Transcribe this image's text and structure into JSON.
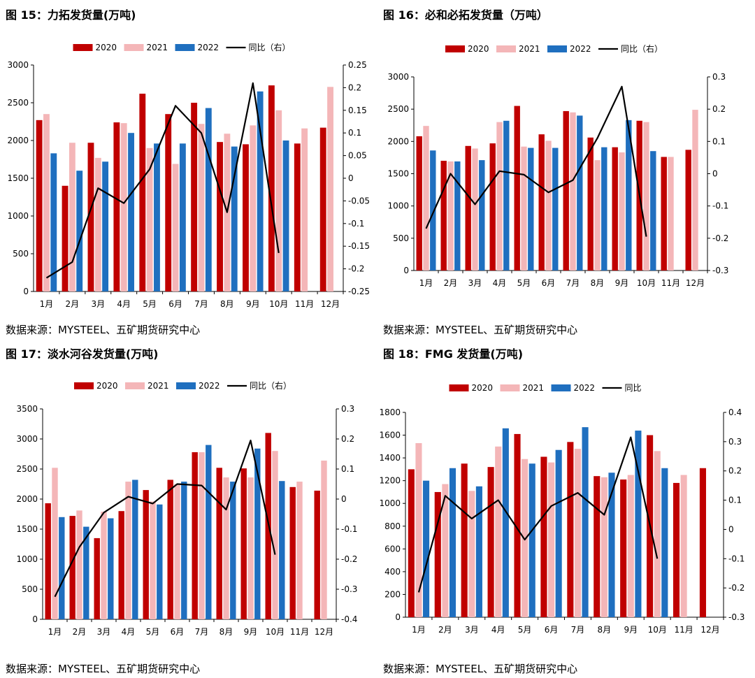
{
  "colors": {
    "c2020": "#c00000",
    "c2021": "#f4b6b8",
    "c2022": "#1f6fbf",
    "line": "#000000"
  },
  "panels": [
    {
      "title": "图 15：力拓发货量(万吨)",
      "source": "数据来源：MYSTEEL、五矿期货研究中心"
    },
    {
      "title": "图 16：必和必拓发货量（万吨）",
      "source": "数据来源：MYSTEEL、五矿期货研究中心"
    },
    {
      "title": "图 17：淡水河谷发货量(万吨)",
      "source": "数据来源：MYSTEEL、五矿期货研究中心"
    },
    {
      "title": "图 18：FMG 发货量(万吨)",
      "source": "数据来源：MYSTEEL、五矿期货研究中心"
    }
  ],
  "chart_data": [
    {
      "type": "bar",
      "title": "图 15：力拓发货量(万吨)",
      "categories": [
        "1月",
        "2月",
        "3月",
        "4月",
        "5月",
        "6月",
        "7月",
        "8月",
        "9月",
        "10月",
        "11月",
        "12月"
      ],
      "series": [
        {
          "name": "2020",
          "values": [
            2270,
            1400,
            1970,
            2240,
            2620,
            2350,
            2500,
            1980,
            1950,
            2730,
            1960,
            2170
          ]
        },
        {
          "name": "2021",
          "values": [
            2350,
            1970,
            1770,
            2230,
            1900,
            1690,
            2220,
            2090,
            2200,
            2400,
            2160,
            2710
          ]
        },
        {
          "name": "2022",
          "values": [
            1830,
            1600,
            1720,
            2100,
            1960,
            1960,
            2430,
            1920,
            2650,
            2000,
            null,
            null
          ]
        }
      ],
      "line": {
        "name": "同比（右）",
        "values": [
          -0.22,
          -0.185,
          -0.022,
          -0.055,
          0.02,
          0.16,
          0.1,
          -0.075,
          0.21,
          -0.165
        ]
      },
      "yleft": {
        "min": 0,
        "max": 3000,
        "ticks": [
          "0",
          "500",
          "1000",
          "1500",
          "2000",
          "2500",
          "3000"
        ]
      },
      "yright": {
        "min": -0.25,
        "max": 0.25,
        "ticks": [
          "-0.25",
          "-0.2",
          "-0.15",
          "-0.1",
          "-0.05",
          "0",
          "0.05",
          "0.1",
          "0.15",
          "0.2",
          "0.25"
        ]
      }
    },
    {
      "type": "bar",
      "title": "图 16：必和必拓发货量（万吨）",
      "categories": [
        "1月",
        "2月",
        "3月",
        "4月",
        "5月",
        "6月",
        "7月",
        "8月",
        "9月",
        "10月",
        "11月",
        "12月"
      ],
      "series": [
        {
          "name": "2020",
          "values": [
            2080,
            1700,
            1930,
            1970,
            2550,
            2110,
            2470,
            2060,
            1910,
            2320,
            1760,
            1870
          ]
        },
        {
          "name": "2021",
          "values": [
            2240,
            1690,
            1890,
            2300,
            1920,
            2010,
            2450,
            1710,
            1830,
            2300,
            1760,
            2490
          ]
        },
        {
          "name": "2022",
          "values": [
            1860,
            1690,
            1710,
            2320,
            1900,
            1900,
            2400,
            1910,
            2330,
            1850,
            null,
            null
          ]
        }
      ],
      "line": {
        "name": "同比（右）",
        "values": [
          -0.17,
          0.0,
          -0.095,
          0.008,
          -0.003,
          -0.058,
          -0.02,
          0.11,
          0.27,
          -0.195
        ]
      },
      "yleft": {
        "min": 0,
        "max": 3000,
        "ticks": [
          "0",
          "500",
          "1000",
          "1500",
          "2000",
          "2500",
          "3000"
        ]
      },
      "yright": {
        "min": -0.3,
        "max": 0.3,
        "ticks": [
          "-0.3",
          "-0.2",
          "-0.1",
          "0",
          "0.1",
          "0.2",
          "0.3"
        ]
      }
    },
    {
      "type": "bar",
      "title": "图 17：淡水河谷发货量(万吨)",
      "categories": [
        "1月",
        "2月",
        "3月",
        "4月",
        "5月",
        "6月",
        "7月",
        "8月",
        "9月",
        "10月",
        "11月",
        "12月"
      ],
      "series": [
        {
          "name": "2020",
          "values": [
            1930,
            1720,
            1350,
            1800,
            2150,
            2320,
            2780,
            2520,
            2510,
            3100,
            2200,
            2140
          ]
        },
        {
          "name": "2021",
          "values": [
            2520,
            1810,
            1790,
            2290,
            1960,
            2250,
            2780,
            2360,
            2360,
            2800,
            2290,
            2640
          ]
        },
        {
          "name": "2022",
          "values": [
            1700,
            1540,
            1680,
            2320,
            1910,
            2290,
            2900,
            2290,
            2840,
            2300,
            null,
            null
          ]
        }
      ],
      "line": {
        "name": "同比（右）",
        "values": [
          -0.325,
          -0.16,
          -0.045,
          0.008,
          -0.015,
          0.05,
          0.045,
          -0.035,
          0.195,
          -0.185
        ]
      },
      "yleft": {
        "min": 0,
        "max": 3500,
        "ticks": [
          "0",
          "500",
          "1000",
          "1500",
          "2000",
          "2500",
          "3000",
          "3500"
        ]
      },
      "yright": {
        "min": -0.4,
        "max": 0.3,
        "ticks": [
          "-0.4",
          "-0.3",
          "-0.2",
          "-0.1",
          "0",
          "0.1",
          "0.2",
          "0.3"
        ]
      }
    },
    {
      "type": "bar",
      "title": "图 18：FMG 发货量(万吨)",
      "categories": [
        "1月",
        "2月",
        "3月",
        "4月",
        "5月",
        "6月",
        "7月",
        "8月",
        "9月",
        "10月",
        "11月",
        "12月"
      ],
      "series": [
        {
          "name": "2020",
          "values": [
            1300,
            1100,
            1350,
            1320,
            1610,
            1410,
            1540,
            1240,
            1210,
            1600,
            1180,
            1310
          ]
        },
        {
          "name": "2021",
          "values": [
            1530,
            1170,
            1110,
            1500,
            1390,
            1360,
            1480,
            1230,
            1250,
            1460,
            1250,
            null
          ]
        },
        {
          "name": "2022",
          "values": [
            1200,
            1310,
            1150,
            1660,
            1350,
            1470,
            1670,
            1270,
            1640,
            1310,
            null,
            null
          ]
        }
      ],
      "line": {
        "name": "同比",
        "values": [
          -0.215,
          0.115,
          0.037,
          0.1,
          -0.035,
          0.08,
          0.125,
          0.05,
          0.315,
          -0.1
        ]
      },
      "yleft": {
        "min": 0,
        "max": 1800,
        "ticks": [
          "0",
          "200",
          "400",
          "600",
          "800",
          "1000",
          "1200",
          "1400",
          "1600",
          "1800"
        ]
      },
      "yright": {
        "min": -0.3,
        "max": 0.4,
        "ticks": [
          "-0.3",
          "-0.2",
          "-0.1",
          "0",
          "0.1",
          "0.2",
          "0.3",
          "0.4"
        ]
      }
    }
  ]
}
